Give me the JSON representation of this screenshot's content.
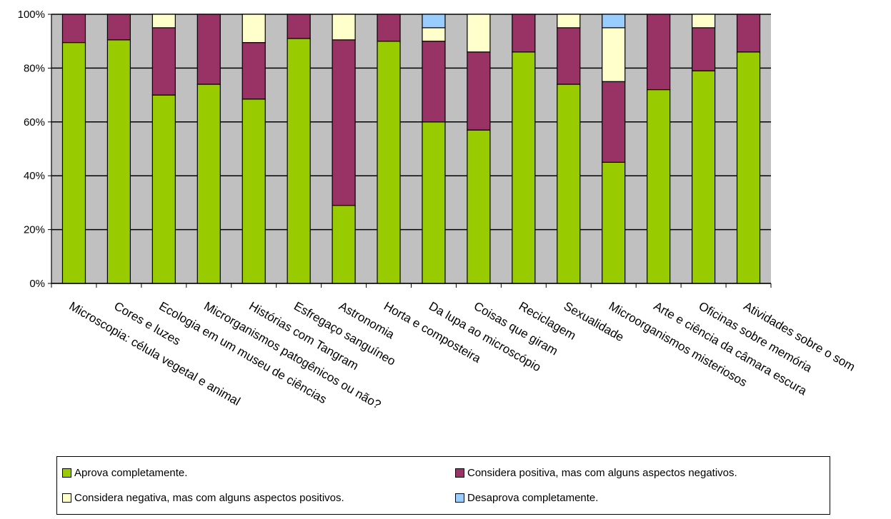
{
  "chart_data": {
    "type": "bar",
    "stacked": true,
    "percent": true,
    "categories": [
      "Microscopia: célula vegetal e animal",
      "Cores e luzes",
      "Ecologia em um museu de ciências",
      "Microrganismos patogênicos ou não?",
      "Histórias com Tangram",
      "Esfregaço sanguíneo",
      "Astronomia",
      "Horta e composteira",
      "Da lupa ao microscópio",
      "Coisas que giram",
      "Reciclagem",
      "Sexualidade",
      "Microorganismos misteriosos",
      "Arte e ciência da câmara escura",
      "Oficinas sobre memória",
      "Atividades sobre o som"
    ],
    "series": [
      {
        "name": "Aprova completamente.",
        "color": "#99cc00",
        "values": [
          89.5,
          90.5,
          70,
          74,
          68.5,
          91,
          29,
          90,
          60,
          57,
          86,
          74,
          45,
          72,
          79,
          86
        ]
      },
      {
        "name": "Considera positiva, mas com alguns aspectos negativos.",
        "color": "#993366",
        "values": [
          10.5,
          9.5,
          25,
          26,
          21,
          9,
          61.5,
          10,
          30,
          29,
          14,
          21,
          30,
          28,
          16,
          14
        ]
      },
      {
        "name": "Considera negativa, mas com alguns aspectos positivos.",
        "color": "#ffffcc",
        "values": [
          0,
          0,
          5,
          0,
          10.5,
          0,
          9.5,
          0,
          5,
          14,
          0,
          5,
          20,
          0,
          5,
          0
        ]
      },
      {
        "name": "Desaprova completamente.",
        "color": "#99ccff",
        "values": [
          0,
          0,
          0,
          0,
          0,
          0,
          0,
          0,
          5,
          0,
          0,
          0,
          5,
          0,
          0,
          0
        ]
      }
    ],
    "y_ticks": [
      "0%",
      "20%",
      "40%",
      "60%",
      "80%",
      "100%"
    ],
    "ylim": [
      0,
      100
    ],
    "grid": true,
    "plot_background": "#c0c0c0",
    "legend_position": "bottom"
  }
}
